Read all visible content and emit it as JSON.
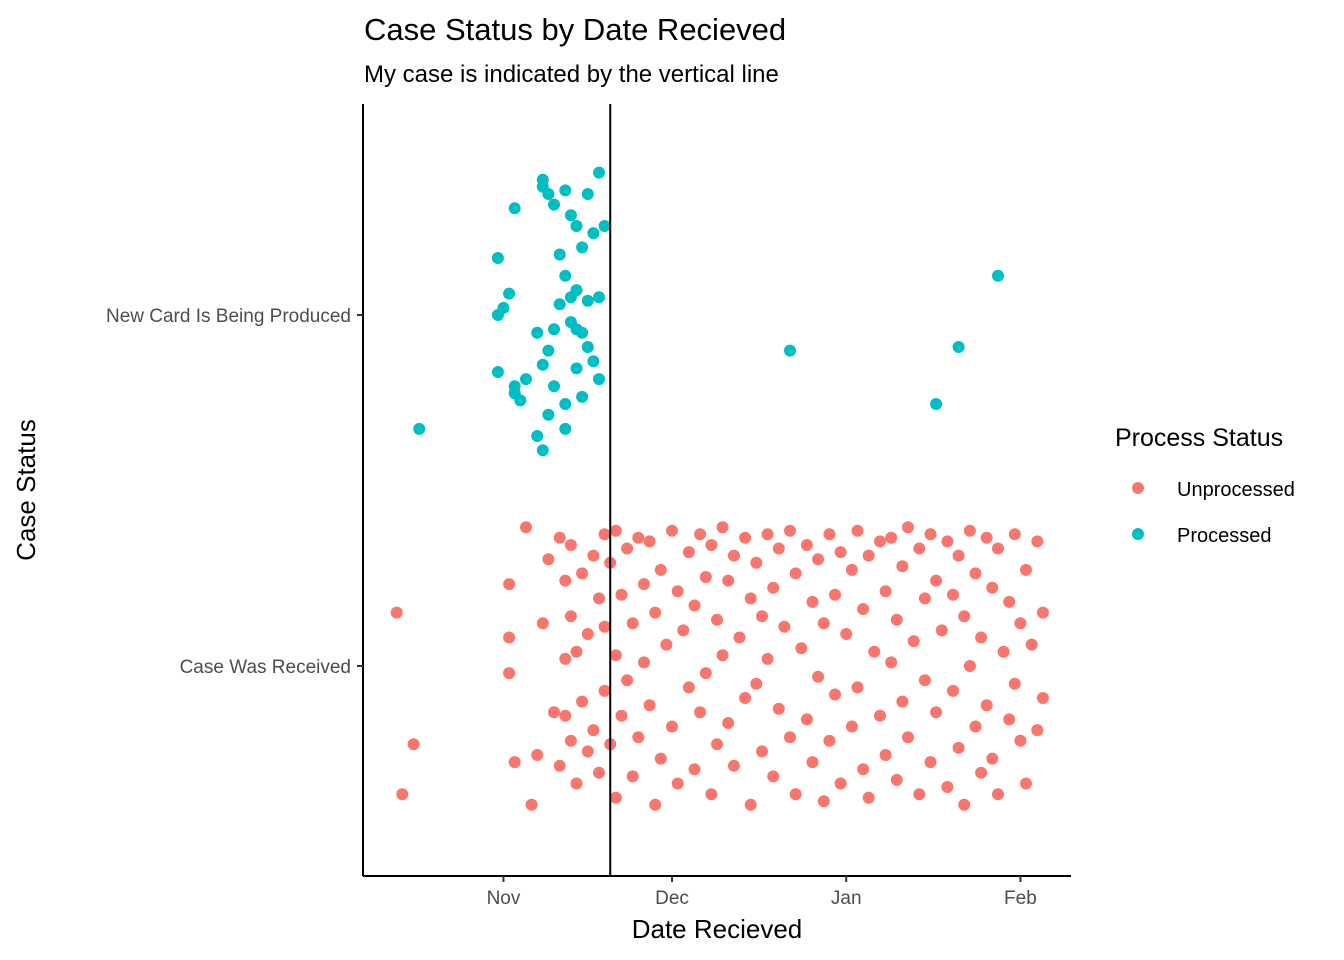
{
  "colors": {
    "unprocessed": "#F8766D",
    "processed": "#00BFC4",
    "axis": "#000000",
    "tick_text": "#4d4d4d"
  },
  "chart_data": {
    "type": "scatter",
    "title": "Case Status by Date Recieved",
    "subtitle": "My case is indicated by the vertical line",
    "xlabel": "Date Recieved",
    "ylabel": "Case Status",
    "x_ticks": [
      "Nov",
      "Dec",
      "Jan",
      "Feb"
    ],
    "y_categories": [
      "Case Was Received",
      "New Card Is Being Produced"
    ],
    "xlim": [
      "2020-10-07",
      "2021-02-10"
    ],
    "vline_date": "2020-11-20",
    "grid": false,
    "legend": {
      "title": "Process Status",
      "position": "right",
      "entries": [
        "Unprocessed",
        "Processed"
      ]
    },
    "series": [
      {
        "name": "Processed",
        "category": "New Card Is Being Produced",
        "points": [
          [
            "2020-10-17",
            -0.32
          ],
          [
            "2020-10-31",
            0.16
          ],
          [
            "2020-10-31",
            -0.16
          ],
          [
            "2020-10-31",
            0
          ],
          [
            "2020-11-01",
            0.02
          ],
          [
            "2020-11-02",
            0.06
          ],
          [
            "2020-11-03",
            -0.22
          ],
          [
            "2020-11-03",
            0.3
          ],
          [
            "2020-11-03",
            -0.2
          ],
          [
            "2020-11-04",
            -0.24
          ],
          [
            "2020-11-05",
            -0.18
          ],
          [
            "2020-11-07",
            -0.34
          ],
          [
            "2020-11-07",
            -0.05
          ],
          [
            "2020-11-08",
            -0.38
          ],
          [
            "2020-11-08",
            0.36
          ],
          [
            "2020-11-08",
            0.38
          ],
          [
            "2020-11-08",
            -0.14
          ],
          [
            "2020-11-09",
            -0.28
          ],
          [
            "2020-11-09",
            0.34
          ],
          [
            "2020-11-09",
            -0.1
          ],
          [
            "2020-11-10",
            0.31
          ],
          [
            "2020-11-10",
            -0.2
          ],
          [
            "2020-11-10",
            -0.04
          ],
          [
            "2020-11-11",
            0.17
          ],
          [
            "2020-11-11",
            0.03
          ],
          [
            "2020-11-12",
            0.35
          ],
          [
            "2020-11-12",
            -0.32
          ],
          [
            "2020-11-12",
            -0.25
          ],
          [
            "2020-11-12",
            0.11
          ],
          [
            "2020-11-13",
            0.28
          ],
          [
            "2020-11-13",
            0.05
          ],
          [
            "2020-11-13",
            -0.02
          ],
          [
            "2020-11-14",
            0.25
          ],
          [
            "2020-11-14",
            -0.15
          ],
          [
            "2020-11-14",
            -0.04
          ],
          [
            "2020-11-14",
            0.07
          ],
          [
            "2020-11-15",
            0.19
          ],
          [
            "2020-11-15",
            -0.23
          ],
          [
            "2020-11-15",
            -0.05
          ],
          [
            "2020-11-16",
            0.34
          ],
          [
            "2020-11-16",
            -0.09
          ],
          [
            "2020-11-16",
            0.04
          ],
          [
            "2020-11-17",
            0.23
          ],
          [
            "2020-11-17",
            -0.13
          ],
          [
            "2020-11-18",
            0.4
          ],
          [
            "2020-11-18",
            -0.18
          ],
          [
            "2020-11-18",
            0.05
          ],
          [
            "2020-11-19",
            0.25
          ],
          [
            "2020-12-22",
            -0.1
          ],
          [
            "2021-01-17",
            -0.25
          ],
          [
            "2021-01-21",
            -0.09
          ],
          [
            "2021-01-28",
            0.11
          ]
        ]
      },
      {
        "name": "Unprocessed",
        "category": "Case Was Received",
        "points": [
          [
            "2020-10-13",
            0.15
          ],
          [
            "2020-10-14",
            -0.36
          ],
          [
            "2020-10-16",
            -0.22
          ],
          [
            "2020-11-02",
            0.23
          ],
          [
            "2020-11-02",
            0.08
          ],
          [
            "2020-11-02",
            -0.02
          ],
          [
            "2020-11-03",
            -0.27
          ],
          [
            "2020-11-05",
            0.39
          ],
          [
            "2020-11-06",
            -0.39
          ],
          [
            "2020-11-07",
            -0.25
          ],
          [
            "2020-11-08",
            0.12
          ],
          [
            "2020-11-09",
            0.3
          ],
          [
            "2020-11-10",
            -0.13
          ],
          [
            "2020-11-11",
            0.36
          ],
          [
            "2020-11-11",
            -0.28
          ],
          [
            "2020-11-12",
            0.24
          ],
          [
            "2020-11-12",
            0.02
          ],
          [
            "2020-11-12",
            -0.14
          ],
          [
            "2020-11-13",
            0.34
          ],
          [
            "2020-11-13",
            0.14
          ],
          [
            "2020-11-13",
            -0.21
          ],
          [
            "2020-11-14",
            0.04
          ],
          [
            "2020-11-14",
            -0.33
          ],
          [
            "2020-11-15",
            0.26
          ],
          [
            "2020-11-15",
            -0.1
          ],
          [
            "2020-11-16",
            0.09
          ],
          [
            "2020-11-16",
            -0.24
          ],
          [
            "2020-11-17",
            0.31
          ],
          [
            "2020-11-17",
            -0.18
          ],
          [
            "2020-11-18",
            0.19
          ],
          [
            "2020-11-18",
            -0.3
          ],
          [
            "2020-11-19",
            0.37
          ],
          [
            "2020-11-19",
            0.11
          ],
          [
            "2020-11-19",
            -0.07
          ],
          [
            "2020-11-20",
            0.29
          ],
          [
            "2020-11-20",
            -0.22
          ],
          [
            "2020-11-21",
            0.38
          ],
          [
            "2020-11-21",
            0.03
          ],
          [
            "2020-11-21",
            -0.37
          ],
          [
            "2020-11-22",
            0.2
          ],
          [
            "2020-11-22",
            -0.14
          ],
          [
            "2020-11-23",
            0.33
          ],
          [
            "2020-11-23",
            -0.04
          ],
          [
            "2020-11-24",
            0.12
          ],
          [
            "2020-11-24",
            -0.31
          ],
          [
            "2020-11-25",
            0.36
          ],
          [
            "2020-11-25",
            -0.2
          ],
          [
            "2020-11-26",
            0.23
          ],
          [
            "2020-11-26",
            0.01
          ],
          [
            "2020-11-27",
            0.35
          ],
          [
            "2020-11-27",
            -0.11
          ],
          [
            "2020-11-28",
            0.15
          ],
          [
            "2020-11-28",
            -0.39
          ],
          [
            "2020-11-29",
            0.27
          ],
          [
            "2020-11-29",
            -0.26
          ],
          [
            "2020-11-30",
            0.06
          ],
          [
            "2020-12-01",
            0.38
          ],
          [
            "2020-12-01",
            -0.17
          ],
          [
            "2020-12-02",
            0.21
          ],
          [
            "2020-12-02",
            -0.33
          ],
          [
            "2020-12-03",
            0.1
          ],
          [
            "2020-12-04",
            0.32
          ],
          [
            "2020-12-04",
            -0.06
          ],
          [
            "2020-12-05",
            0.17
          ],
          [
            "2020-12-05",
            -0.29
          ],
          [
            "2020-12-06",
            0.37
          ],
          [
            "2020-12-06",
            -0.13
          ],
          [
            "2020-12-07",
            0.25
          ],
          [
            "2020-12-07",
            -0.02
          ],
          [
            "2020-12-08",
            0.34
          ],
          [
            "2020-12-08",
            -0.36
          ],
          [
            "2020-12-09",
            0.13
          ],
          [
            "2020-12-09",
            -0.22
          ],
          [
            "2020-12-10",
            0.39
          ],
          [
            "2020-12-10",
            0.03
          ],
          [
            "2020-12-11",
            0.24
          ],
          [
            "2020-12-11",
            -0.16
          ],
          [
            "2020-12-12",
            0.31
          ],
          [
            "2020-12-12",
            -0.28
          ],
          [
            "2020-12-13",
            0.08
          ],
          [
            "2020-12-14",
            0.36
          ],
          [
            "2020-12-14",
            -0.09
          ],
          [
            "2020-12-15",
            0.19
          ],
          [
            "2020-12-15",
            -0.39
          ],
          [
            "2020-12-16",
            0.29
          ],
          [
            "2020-12-16",
            -0.05
          ],
          [
            "2020-12-17",
            0.14
          ],
          [
            "2020-12-17",
            -0.24
          ],
          [
            "2020-12-18",
            0.37
          ],
          [
            "2020-12-18",
            0.02
          ],
          [
            "2020-12-19",
            0.22
          ],
          [
            "2020-12-19",
            -0.31
          ],
          [
            "2020-12-20",
            0.33
          ],
          [
            "2020-12-20",
            -0.12
          ],
          [
            "2020-12-21",
            0.11
          ],
          [
            "2020-12-22",
            0.38
          ],
          [
            "2020-12-22",
            -0.2
          ],
          [
            "2020-12-23",
            0.26
          ],
          [
            "2020-12-23",
            -0.36
          ],
          [
            "2020-12-24",
            0.05
          ],
          [
            "2020-12-25",
            0.34
          ],
          [
            "2020-12-25",
            -0.15
          ],
          [
            "2020-12-26",
            0.18
          ],
          [
            "2020-12-26",
            -0.27
          ],
          [
            "2020-12-27",
            0.3
          ],
          [
            "2020-12-27",
            -0.03
          ],
          [
            "2020-12-28",
            0.12
          ],
          [
            "2020-12-28",
            -0.38
          ],
          [
            "2020-12-29",
            0.37
          ],
          [
            "2020-12-29",
            -0.21
          ],
          [
            "2020-12-30",
            0.2
          ],
          [
            "2020-12-30",
            -0.08
          ],
          [
            "2020-12-31",
            0.32
          ],
          [
            "2020-12-31",
            -0.33
          ],
          [
            "2021-01-01",
            0.09
          ],
          [
            "2021-01-02",
            0.27
          ],
          [
            "2021-01-02",
            -0.17
          ],
          [
            "2021-01-03",
            0.38
          ],
          [
            "2021-01-03",
            -0.06
          ],
          [
            "2021-01-04",
            0.16
          ],
          [
            "2021-01-04",
            -0.29
          ],
          [
            "2021-01-05",
            0.31
          ],
          [
            "2021-01-05",
            -0.37
          ],
          [
            "2021-01-06",
            0.04
          ],
          [
            "2021-01-07",
            0.35
          ],
          [
            "2021-01-07",
            -0.14
          ],
          [
            "2021-01-08",
            0.21
          ],
          [
            "2021-01-08",
            -0.25
          ],
          [
            "2021-01-09",
            0.36
          ],
          [
            "2021-01-09",
            0.01
          ],
          [
            "2021-01-10",
            0.13
          ],
          [
            "2021-01-10",
            -0.32
          ],
          [
            "2021-01-11",
            0.28
          ],
          [
            "2021-01-11",
            -0.1
          ],
          [
            "2021-01-12",
            0.39
          ],
          [
            "2021-01-12",
            -0.2
          ],
          [
            "2021-01-13",
            0.07
          ],
          [
            "2021-01-14",
            0.33
          ],
          [
            "2021-01-14",
            -0.36
          ],
          [
            "2021-01-15",
            0.19
          ],
          [
            "2021-01-15",
            -0.04
          ],
          [
            "2021-01-16",
            0.37
          ],
          [
            "2021-01-16",
            -0.27
          ],
          [
            "2021-01-17",
            0.24
          ],
          [
            "2021-01-17",
            -0.13
          ],
          [
            "2021-01-18",
            0.1
          ],
          [
            "2021-01-19",
            0.35
          ],
          [
            "2021-01-19",
            -0.34
          ],
          [
            "2021-01-20",
            0.2
          ],
          [
            "2021-01-20",
            -0.07
          ],
          [
            "2021-01-21",
            0.31
          ],
          [
            "2021-01-21",
            -0.23
          ],
          [
            "2021-01-22",
            0.14
          ],
          [
            "2021-01-22",
            -0.39
          ],
          [
            "2021-01-23",
            0.38
          ],
          [
            "2021-01-23",
            0.0
          ],
          [
            "2021-01-24",
            0.26
          ],
          [
            "2021-01-24",
            -0.17
          ],
          [
            "2021-01-25",
            0.08
          ],
          [
            "2021-01-25",
            -0.3
          ],
          [
            "2021-01-26",
            0.36
          ],
          [
            "2021-01-26",
            -0.11
          ],
          [
            "2021-01-27",
            0.22
          ],
          [
            "2021-01-27",
            -0.26
          ],
          [
            "2021-01-28",
            0.33
          ],
          [
            "2021-01-28",
            -0.36
          ],
          [
            "2021-01-29",
            0.04
          ],
          [
            "2021-01-30",
            0.18
          ],
          [
            "2021-01-30",
            -0.15
          ],
          [
            "2021-01-31",
            0.37
          ],
          [
            "2021-01-31",
            -0.05
          ],
          [
            "2021-02-01",
            0.12
          ],
          [
            "2021-02-01",
            -0.21
          ],
          [
            "2021-02-02",
            0.27
          ],
          [
            "2021-02-02",
            -0.33
          ],
          [
            "2021-02-03",
            0.06
          ],
          [
            "2021-02-04",
            0.35
          ],
          [
            "2021-02-04",
            -0.18
          ],
          [
            "2021-02-05",
            0.15
          ],
          [
            "2021-02-05",
            -0.09
          ]
        ]
      }
    ]
  }
}
